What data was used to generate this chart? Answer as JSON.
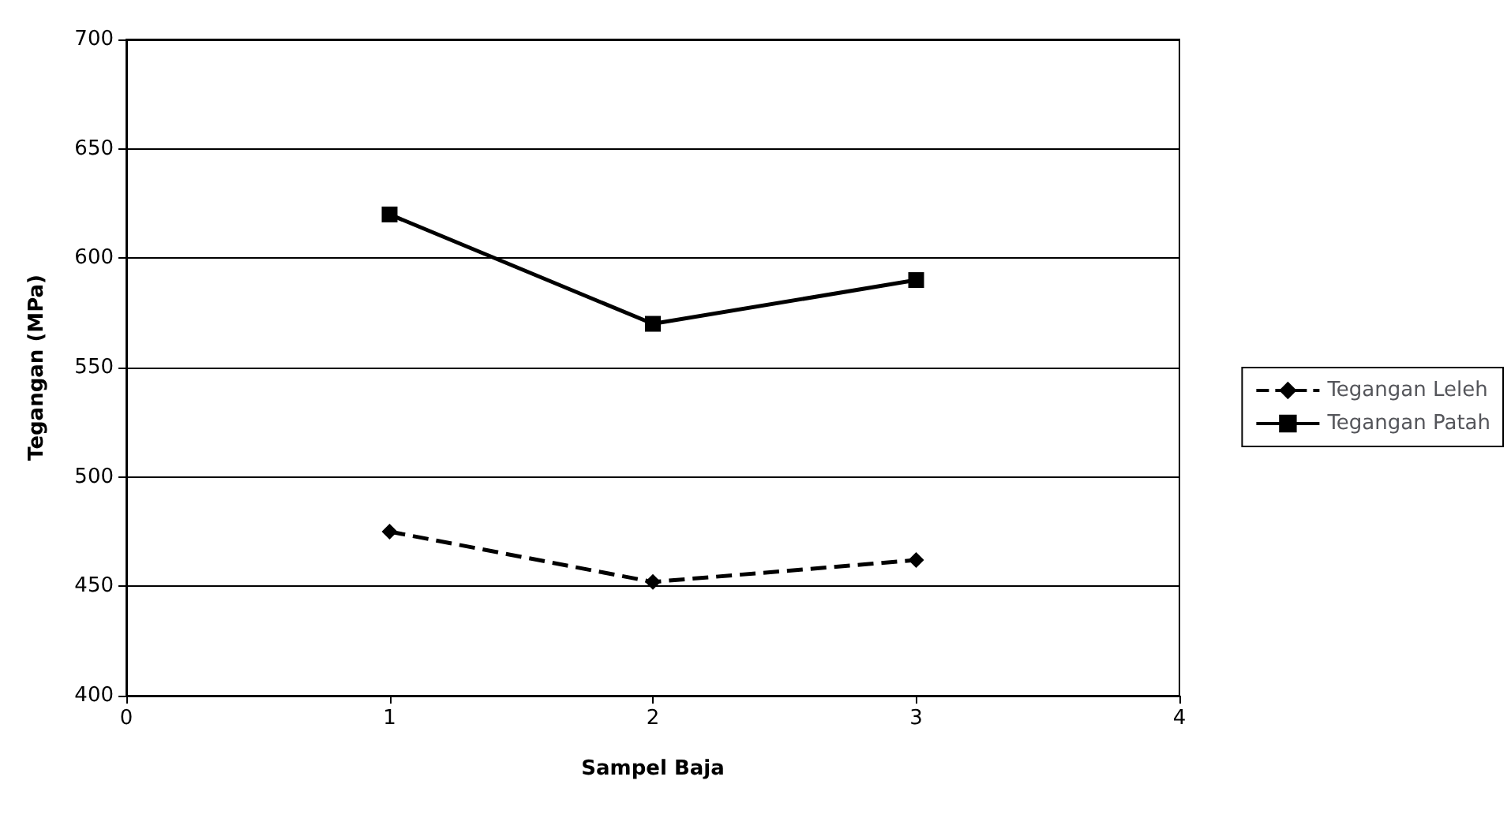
{
  "chart_data": {
    "type": "line",
    "xlabel": "Sampel Baja",
    "ylabel": "Tegangan (MPa)",
    "x": [
      1,
      2,
      3
    ],
    "xlim": [
      0,
      4
    ],
    "xticks": [
      0,
      1,
      2,
      3,
      4
    ],
    "ylim": [
      400,
      700
    ],
    "yticks": [
      400,
      450,
      500,
      550,
      600,
      650,
      700
    ],
    "grid": "y",
    "legend": "right",
    "series": [
      {
        "name": "Tegangan Leleh",
        "color": "#000000",
        "values": [
          475,
          452,
          462
        ],
        "marker": "diamond",
        "line_style": "dashed"
      },
      {
        "name": "Tegangan Patah",
        "color": "#000000",
        "values": [
          620,
          570,
          590
        ],
        "marker": "square",
        "line_style": "solid"
      }
    ]
  }
}
